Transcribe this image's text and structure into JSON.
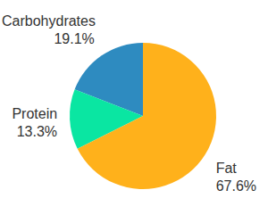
{
  "chart_data": {
    "type": "pie",
    "categories": [
      "Carbohydrates",
      "Protein",
      "Fat"
    ],
    "values": [
      19.1,
      13.3,
      67.6
    ],
    "value_labels": [
      "19.1%",
      "13.3%",
      "67.6%"
    ],
    "colors": [
      "#2e8bc0",
      "#0ae6a2",
      "#ffb11b"
    ],
    "data_labels": true
  }
}
